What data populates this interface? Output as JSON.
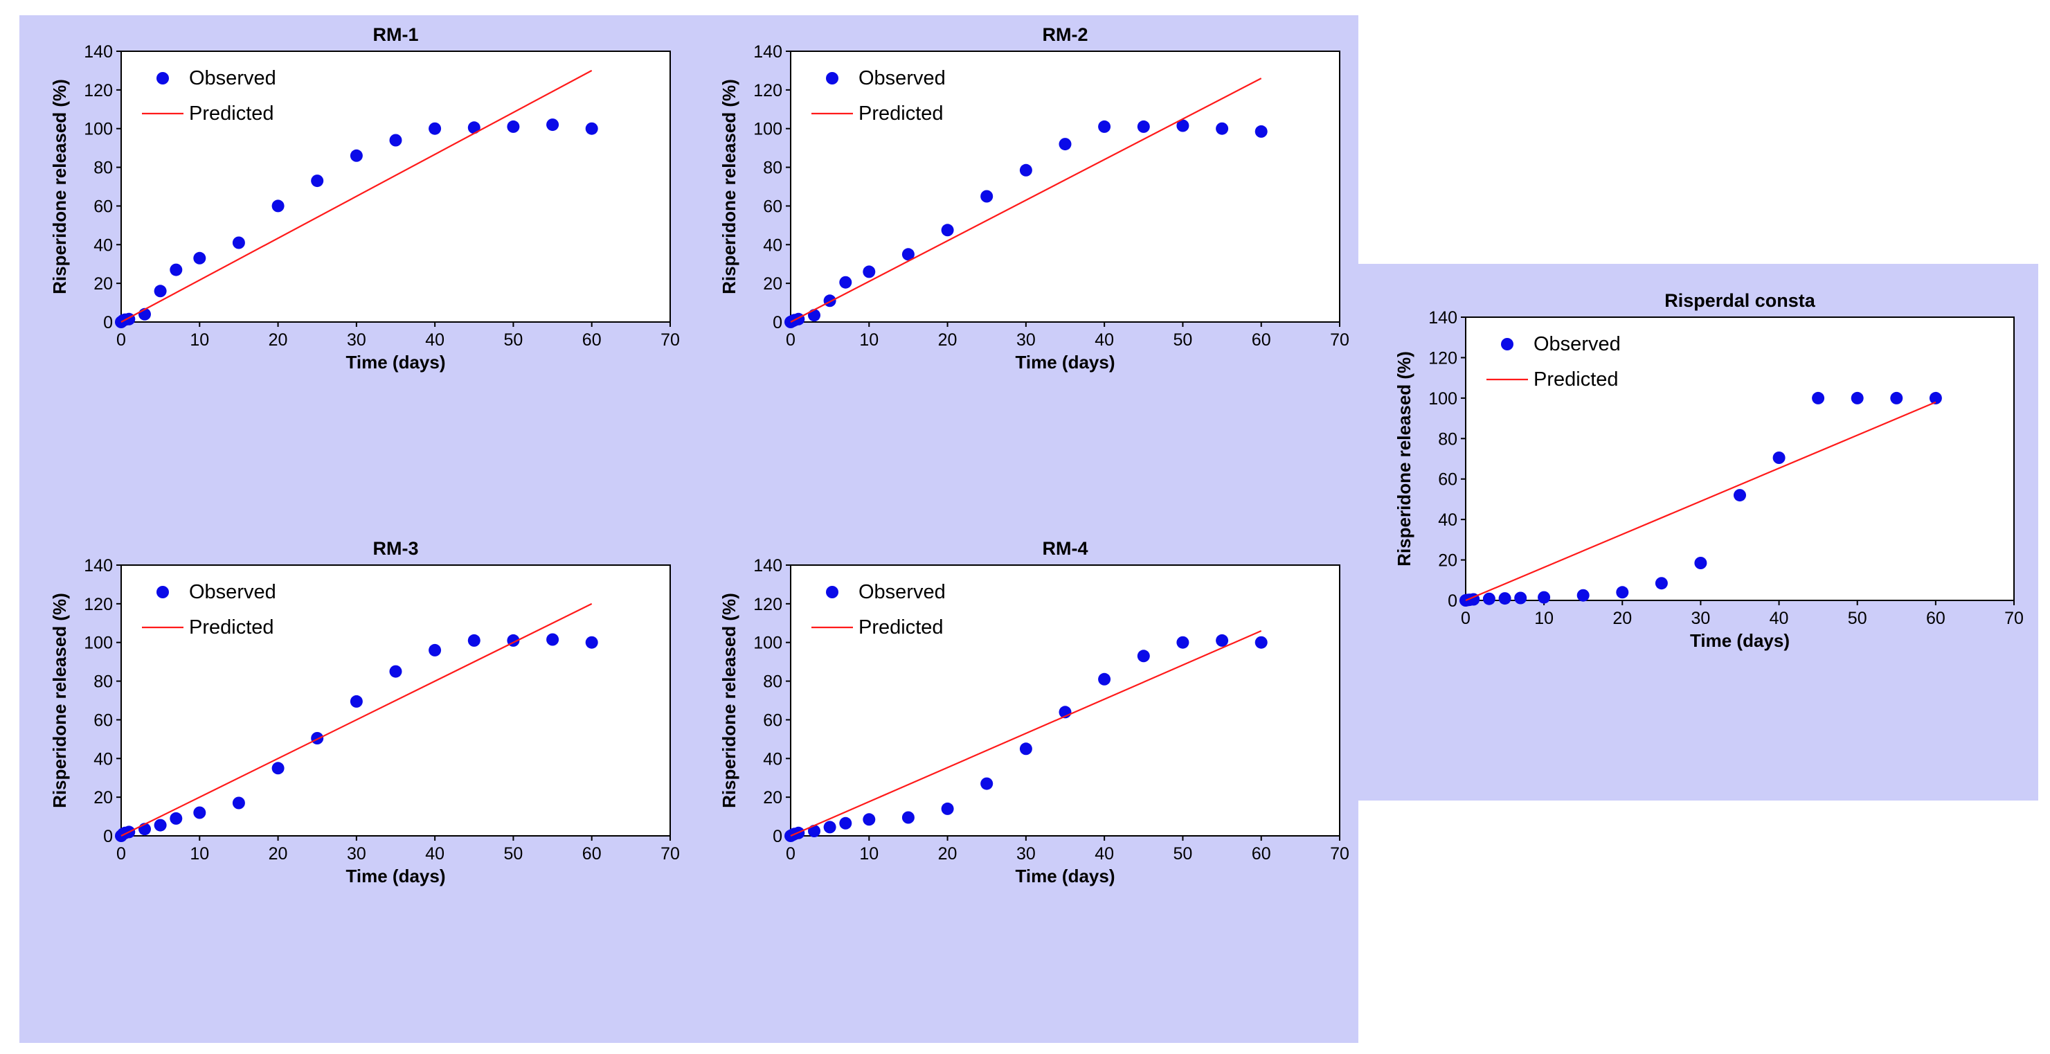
{
  "colors": {
    "observed": "#0a0ae8",
    "predicted": "#ff1a1a",
    "panel_background": "#cccdf9"
  },
  "chart_data": [
    {
      "type": "scatter",
      "title": "RM-1",
      "xlabel": "Time (days)",
      "ylabel": "Risperidone released (%)",
      "xlim": [
        0,
        70
      ],
      "ylim": [
        0,
        140
      ],
      "xticks": [
        0,
        10,
        20,
        30,
        40,
        50,
        60,
        70
      ],
      "yticks": [
        0,
        20,
        40,
        60,
        80,
        100,
        120,
        140
      ],
      "legend": [
        "Observed",
        "Predicted"
      ],
      "series": [
        {
          "name": "Observed",
          "kind": "points",
          "x": [
            0,
            0.25,
            0.5,
            1,
            3,
            5,
            7,
            10,
            15,
            20,
            25,
            30,
            35,
            40,
            45,
            50,
            55,
            60
          ],
          "y": [
            0,
            0.8,
            1.2,
            1.5,
            4,
            16,
            27,
            33,
            41,
            60,
            73,
            86,
            94,
            100,
            100.5,
            101,
            102,
            100
          ]
        },
        {
          "name": "Predicted",
          "kind": "line",
          "x": [
            0,
            60
          ],
          "y": [
            0,
            130
          ]
        }
      ]
    },
    {
      "type": "scatter",
      "title": "RM-2",
      "xlabel": "Time (days)",
      "ylabel": "Risperidone released (%)",
      "xlim": [
        0,
        70
      ],
      "ylim": [
        0,
        140
      ],
      "xticks": [
        0,
        10,
        20,
        30,
        40,
        50,
        60,
        70
      ],
      "yticks": [
        0,
        20,
        40,
        60,
        80,
        100,
        120,
        140
      ],
      "legend": [
        "Observed",
        "Predicted"
      ],
      "series": [
        {
          "name": "Observed",
          "kind": "points",
          "x": [
            0,
            0.25,
            0.5,
            1,
            3,
            5,
            7,
            10,
            15,
            20,
            25,
            30,
            35,
            40,
            45,
            50,
            55,
            60
          ],
          "y": [
            0,
            0.5,
            1,
            1.5,
            3.5,
            11,
            20.5,
            26,
            35,
            47.5,
            65,
            78.5,
            92,
            101,
            101,
            101.5,
            100,
            98.5
          ]
        },
        {
          "name": "Predicted",
          "kind": "line",
          "x": [
            0,
            60
          ],
          "y": [
            0,
            126
          ]
        }
      ]
    },
    {
      "type": "scatter",
      "title": "RM-3",
      "xlabel": "Time (days)",
      "ylabel": "Risperidone released (%)",
      "xlim": [
        0,
        70
      ],
      "ylim": [
        0,
        140
      ],
      "xticks": [
        0,
        10,
        20,
        30,
        40,
        50,
        60,
        70
      ],
      "yticks": [
        0,
        20,
        40,
        60,
        80,
        100,
        120,
        140
      ],
      "legend": [
        "Observed",
        "Predicted"
      ],
      "series": [
        {
          "name": "Observed",
          "kind": "points",
          "x": [
            0,
            0.25,
            0.5,
            1,
            3,
            5,
            7,
            10,
            15,
            20,
            25,
            30,
            35,
            40,
            45,
            50,
            55,
            60
          ],
          "y": [
            0,
            1,
            1.5,
            2,
            3.5,
            5.5,
            9,
            12,
            17,
            35,
            50.5,
            69.5,
            85,
            96,
            101,
            101,
            101.5,
            100
          ]
        },
        {
          "name": "Predicted",
          "kind": "line",
          "x": [
            0,
            60
          ],
          "y": [
            0,
            120
          ]
        }
      ]
    },
    {
      "type": "scatter",
      "title": "RM-4",
      "xlabel": "Time (days)",
      "ylabel": "Risperidone released (%)",
      "xlim": [
        0,
        70
      ],
      "ylim": [
        0,
        140
      ],
      "xticks": [
        0,
        10,
        20,
        30,
        40,
        50,
        60,
        70
      ],
      "yticks": [
        0,
        20,
        40,
        60,
        80,
        100,
        120,
        140
      ],
      "legend": [
        "Observed",
        "Predicted"
      ],
      "series": [
        {
          "name": "Observed",
          "kind": "points",
          "x": [
            0,
            0.25,
            0.5,
            1,
            3,
            5,
            7,
            10,
            15,
            20,
            25,
            30,
            35,
            40,
            45,
            50,
            55,
            60
          ],
          "y": [
            0,
            0.5,
            1,
            1.5,
            2.5,
            4.5,
            6.5,
            8.5,
            9.5,
            14,
            27,
            45,
            64,
            81,
            93,
            100,
            101,
            100
          ]
        },
        {
          "name": "Predicted",
          "kind": "line",
          "x": [
            0,
            60
          ],
          "y": [
            0,
            106
          ]
        }
      ]
    },
    {
      "type": "scatter",
      "title": "Risperdal consta",
      "xlabel": "Time (days)",
      "ylabel": "Risperidone released (%)",
      "xlim": [
        0,
        70
      ],
      "ylim": [
        0,
        140
      ],
      "xticks": [
        0,
        10,
        20,
        30,
        40,
        50,
        60,
        70
      ],
      "yticks": [
        0,
        20,
        40,
        60,
        80,
        100,
        120,
        140
      ],
      "legend": [
        "Observed",
        "Predicted"
      ],
      "series": [
        {
          "name": "Observed",
          "kind": "points",
          "x": [
            0,
            0.25,
            0.5,
            1,
            3,
            5,
            7,
            10,
            15,
            20,
            25,
            30,
            35,
            40,
            45,
            50,
            55,
            60
          ],
          "y": [
            0,
            0.2,
            0.3,
            0.5,
            0.8,
            1,
            1.2,
            1.5,
            2.5,
            4,
            8.5,
            18.5,
            52,
            70.5,
            100,
            100,
            100,
            100
          ]
        },
        {
          "name": "Predicted",
          "kind": "line",
          "x": [
            0,
            60
          ],
          "y": [
            0,
            98
          ]
        }
      ]
    }
  ]
}
